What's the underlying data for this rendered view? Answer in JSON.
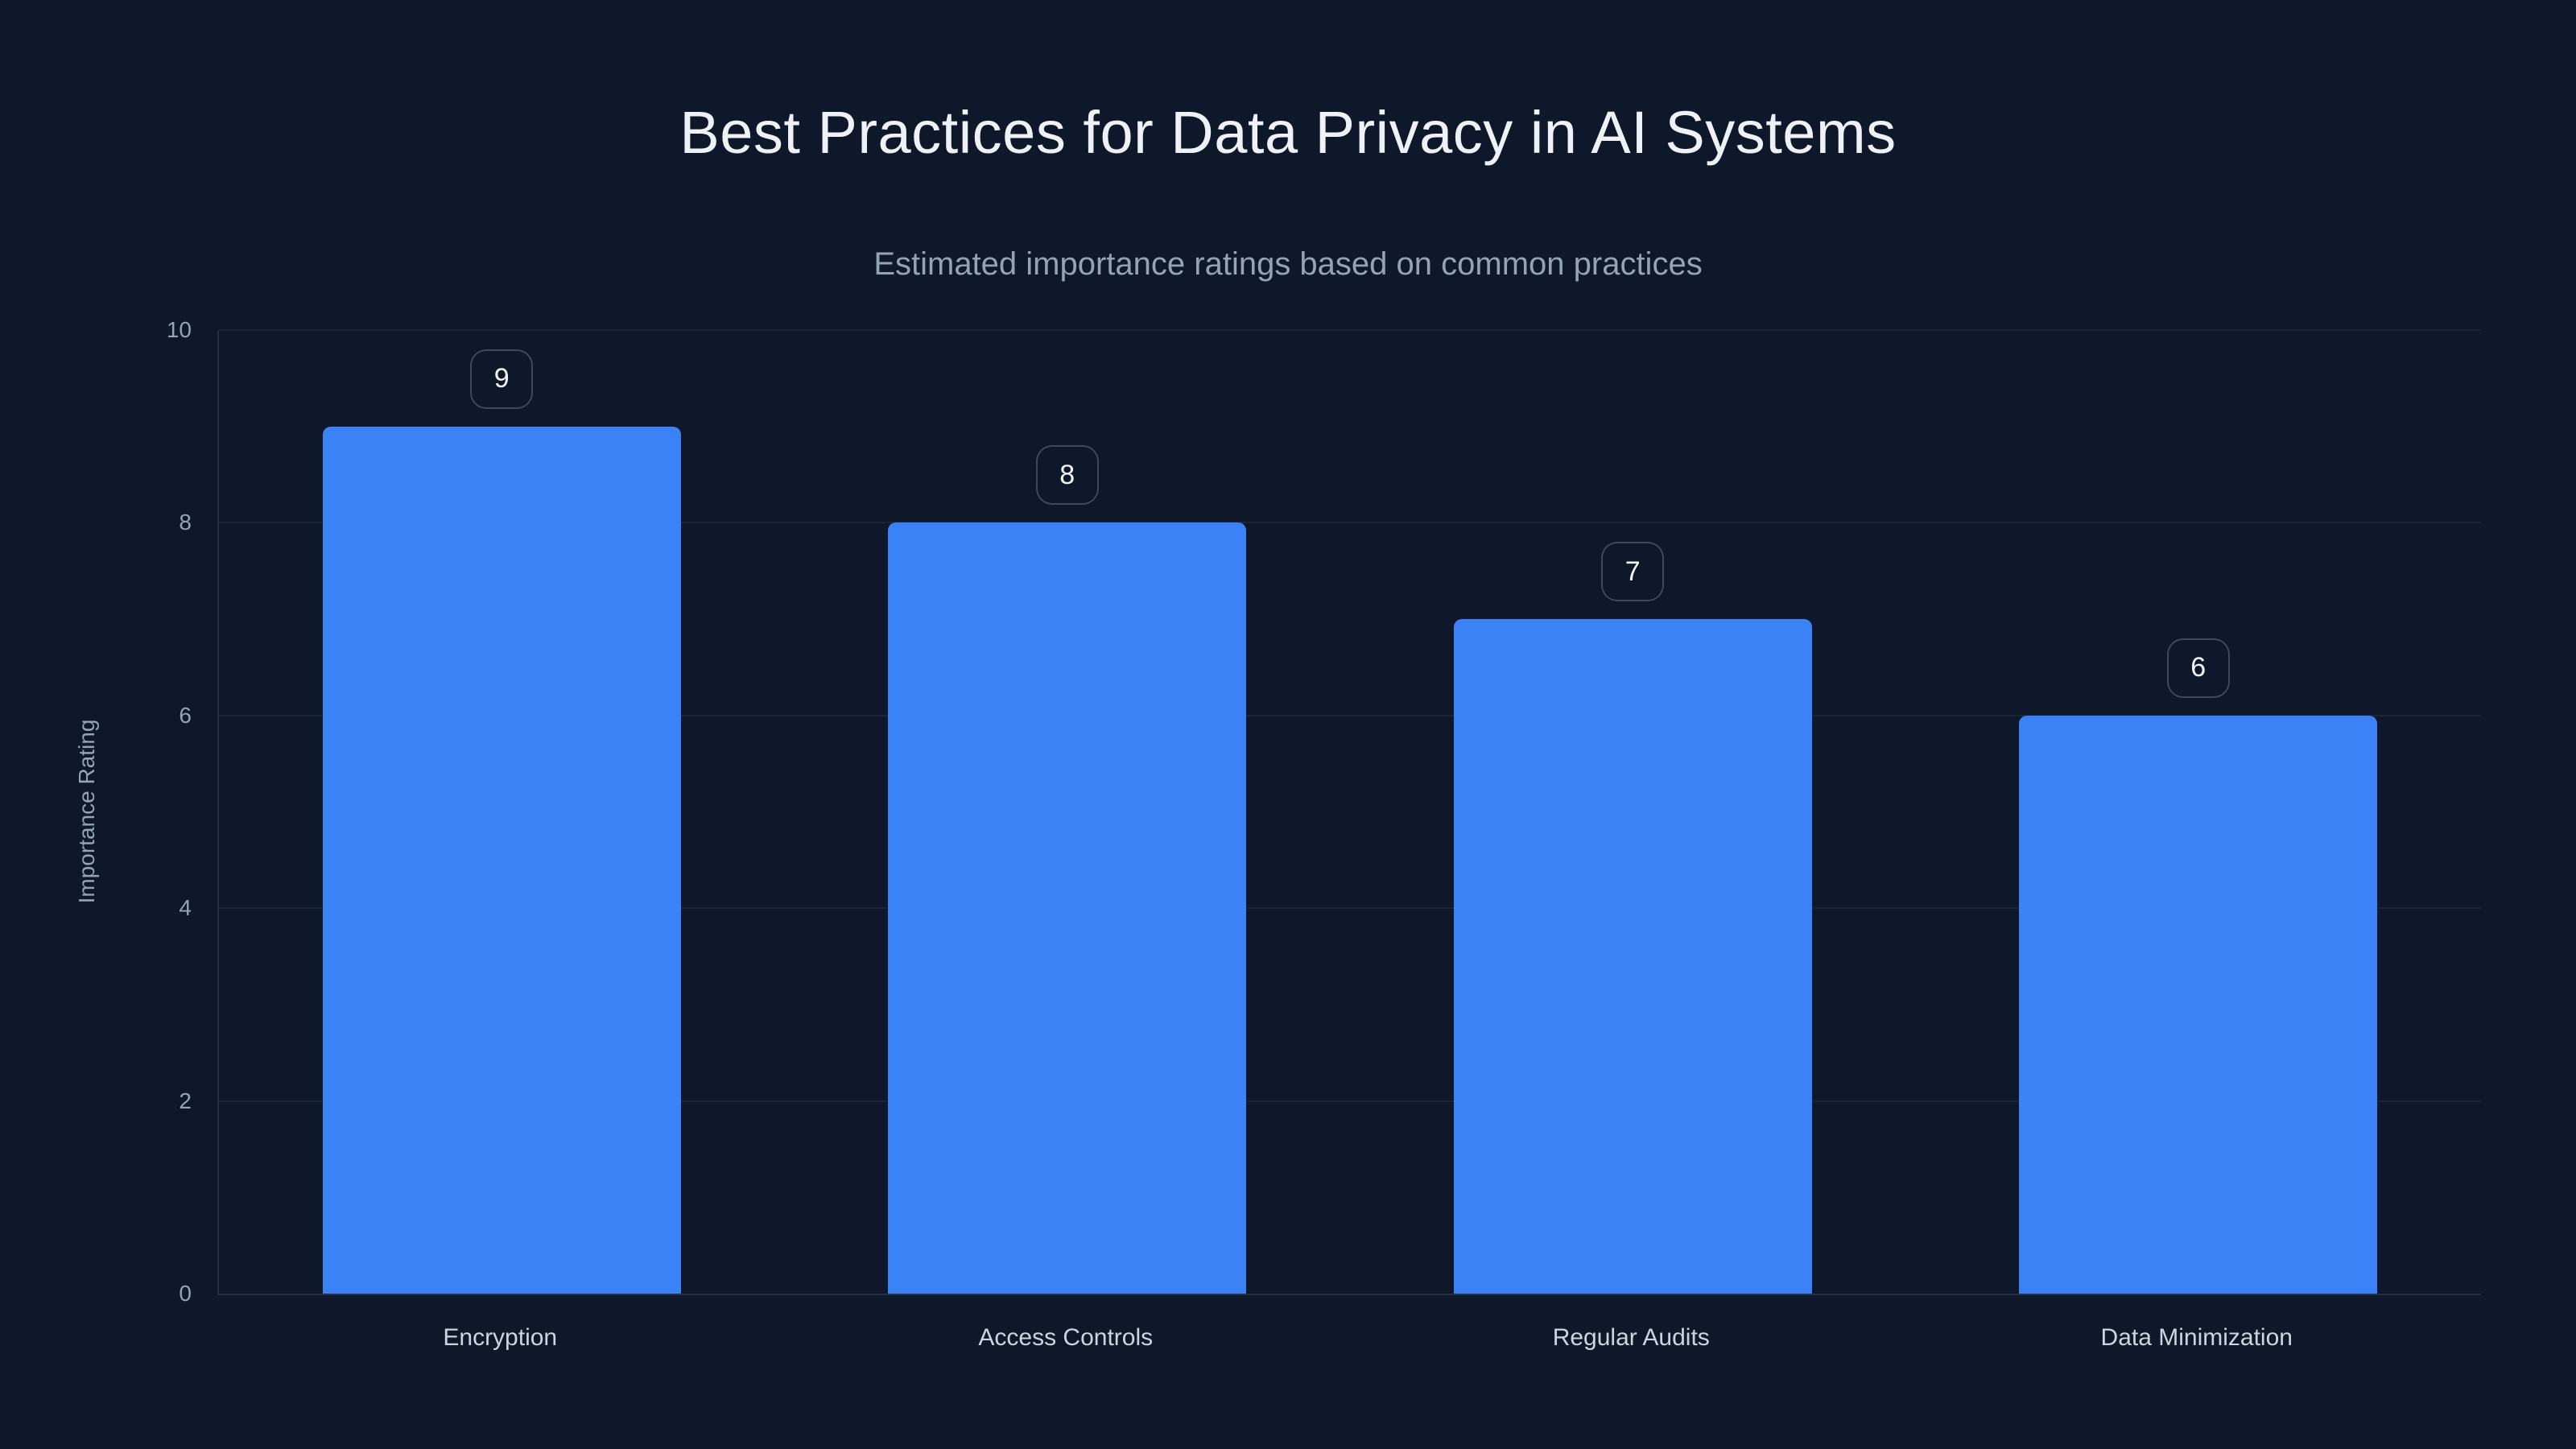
{
  "page": {
    "background_color": "#0f172a",
    "accent_color": "#3b82f6"
  },
  "chart_data": {
    "type": "bar",
    "title": "Best Practices for Data Privacy in AI Systems",
    "subtitle": "Estimated importance ratings based on common practices",
    "categories": [
      "Encryption",
      "Access Controls",
      "Regular Audits",
      "Data Minimization"
    ],
    "values": [
      9,
      8,
      7,
      6
    ],
    "value_labels": [
      "9",
      "8",
      "7",
      "6"
    ],
    "xlabel": "",
    "ylabel": "Importance Rating",
    "ylim": [
      0,
      10
    ],
    "yticks": [
      0,
      2,
      4,
      6,
      8,
      10
    ],
    "grid": "horizontal-only",
    "legend": "none",
    "bar_color": "#3b82f6",
    "title_color": "#eef2f7",
    "subtitle_color": "#94a3b8",
    "tick_color": "#94a3b8",
    "category_label_color": "#cbd5e1",
    "gridline_color": "rgba(148,163,184,0.10)"
  }
}
